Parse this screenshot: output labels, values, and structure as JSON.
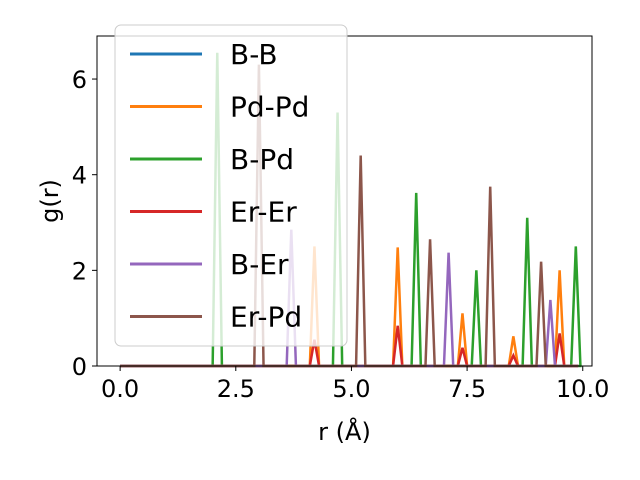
{
  "chart_data": {
    "type": "line",
    "xlabel": "r (Å)",
    "ylabel": "g(r)",
    "xlim": [
      -0.5,
      10.2
    ],
    "ylim": [
      0,
      6.9
    ],
    "xticks": [
      0.0,
      2.5,
      5.0,
      7.5,
      10.0
    ],
    "xtick_labels": [
      "0.0",
      "2.5",
      "5.0",
      "7.5",
      "10.0"
    ],
    "yticks": [
      0,
      2,
      4,
      6
    ],
    "ytick_labels": [
      "0",
      "2",
      "4",
      "6"
    ],
    "grid": false,
    "legend_position": "top-left",
    "colors": {
      "B-B": "#1f77b4",
      "Pd-Pd": "#ff7f0e",
      "B-Pd": "#2ca02c",
      "Er-Er": "#d62728",
      "B-Er": "#9467bd",
      "Er-Pd": "#8c564b"
    },
    "series": [
      {
        "name": "B-B",
        "peaks": []
      },
      {
        "name": "Pd-Pd",
        "peaks": [
          [
            4.2,
            2.5
          ],
          [
            6.0,
            2.48
          ],
          [
            7.4,
            1.1
          ],
          [
            8.5,
            0.62
          ],
          [
            9.5,
            2.0
          ]
        ]
      },
      {
        "name": "B-Pd",
        "peaks": [
          [
            2.1,
            6.55
          ],
          [
            4.7,
            5.3
          ],
          [
            6.4,
            3.62
          ],
          [
            7.7,
            2.0
          ],
          [
            8.8,
            3.1
          ],
          [
            9.85,
            2.5
          ]
        ]
      },
      {
        "name": "Er-Er",
        "peaks": [
          [
            4.2,
            0.55
          ],
          [
            6.0,
            0.84
          ],
          [
            7.4,
            0.38
          ],
          [
            8.5,
            0.22
          ],
          [
            9.5,
            0.68
          ]
        ]
      },
      {
        "name": "B-Er",
        "peaks": [
          [
            3.7,
            2.85
          ],
          [
            7.1,
            2.37
          ],
          [
            9.3,
            1.38
          ]
        ]
      },
      {
        "name": "Er-Pd",
        "peaks": [
          [
            3.0,
            6.3
          ],
          [
            5.2,
            4.4
          ],
          [
            6.7,
            2.65
          ],
          [
            8.0,
            3.75
          ],
          [
            9.1,
            2.18
          ]
        ]
      }
    ]
  }
}
